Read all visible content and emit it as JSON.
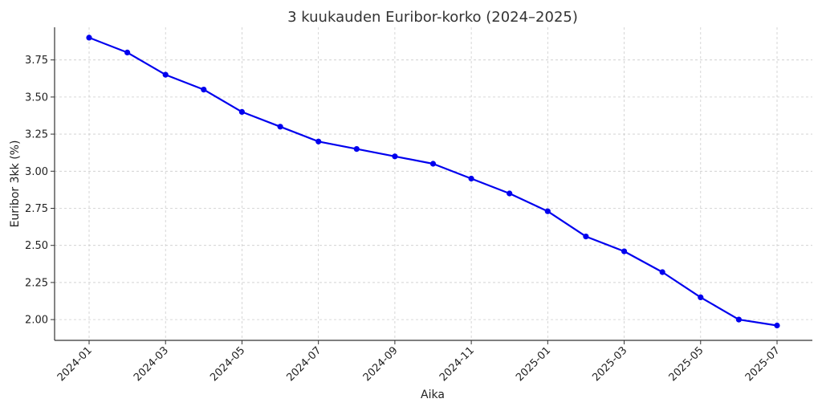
{
  "chart_data": {
    "type": "line",
    "title": "3 kuukauden Euribor-korko (2024–2025)",
    "xlabel": "Aika",
    "ylabel": "Euribor 3kk (%)",
    "ylim": [
      1.86,
      3.97
    ],
    "yticks": [
      2.0,
      2.25,
      2.5,
      2.75,
      3.0,
      3.25,
      3.5,
      3.75
    ],
    "ytick_labels": [
      "2.00",
      "2.25",
      "2.50",
      "2.75",
      "3.00",
      "3.25",
      "3.50",
      "3.75"
    ],
    "xticks": [
      "2024-01",
      "2024-03",
      "2024-05",
      "2024-07",
      "2024-09",
      "2024-11",
      "2025-01",
      "2025-03",
      "2025-05",
      "2025-07"
    ],
    "grid": true,
    "color": "#0000ee",
    "series": [
      {
        "x": [
          "2024-01",
          "2024-02",
          "2024-03",
          "2024-04",
          "2024-05",
          "2024-06",
          "2024-07",
          "2024-08",
          "2024-09",
          "2024-10",
          "2024-11",
          "2024-12",
          "2025-01",
          "2025-02",
          "2025-03",
          "2025-04",
          "2025-05",
          "2025-06",
          "2025-07"
        ],
        "values": [
          3.9,
          3.8,
          3.65,
          3.55,
          3.4,
          3.3,
          3.2,
          3.15,
          3.1,
          3.05,
          2.95,
          2.85,
          2.73,
          2.56,
          2.46,
          2.32,
          2.15,
          2.0,
          1.96
        ]
      }
    ]
  }
}
